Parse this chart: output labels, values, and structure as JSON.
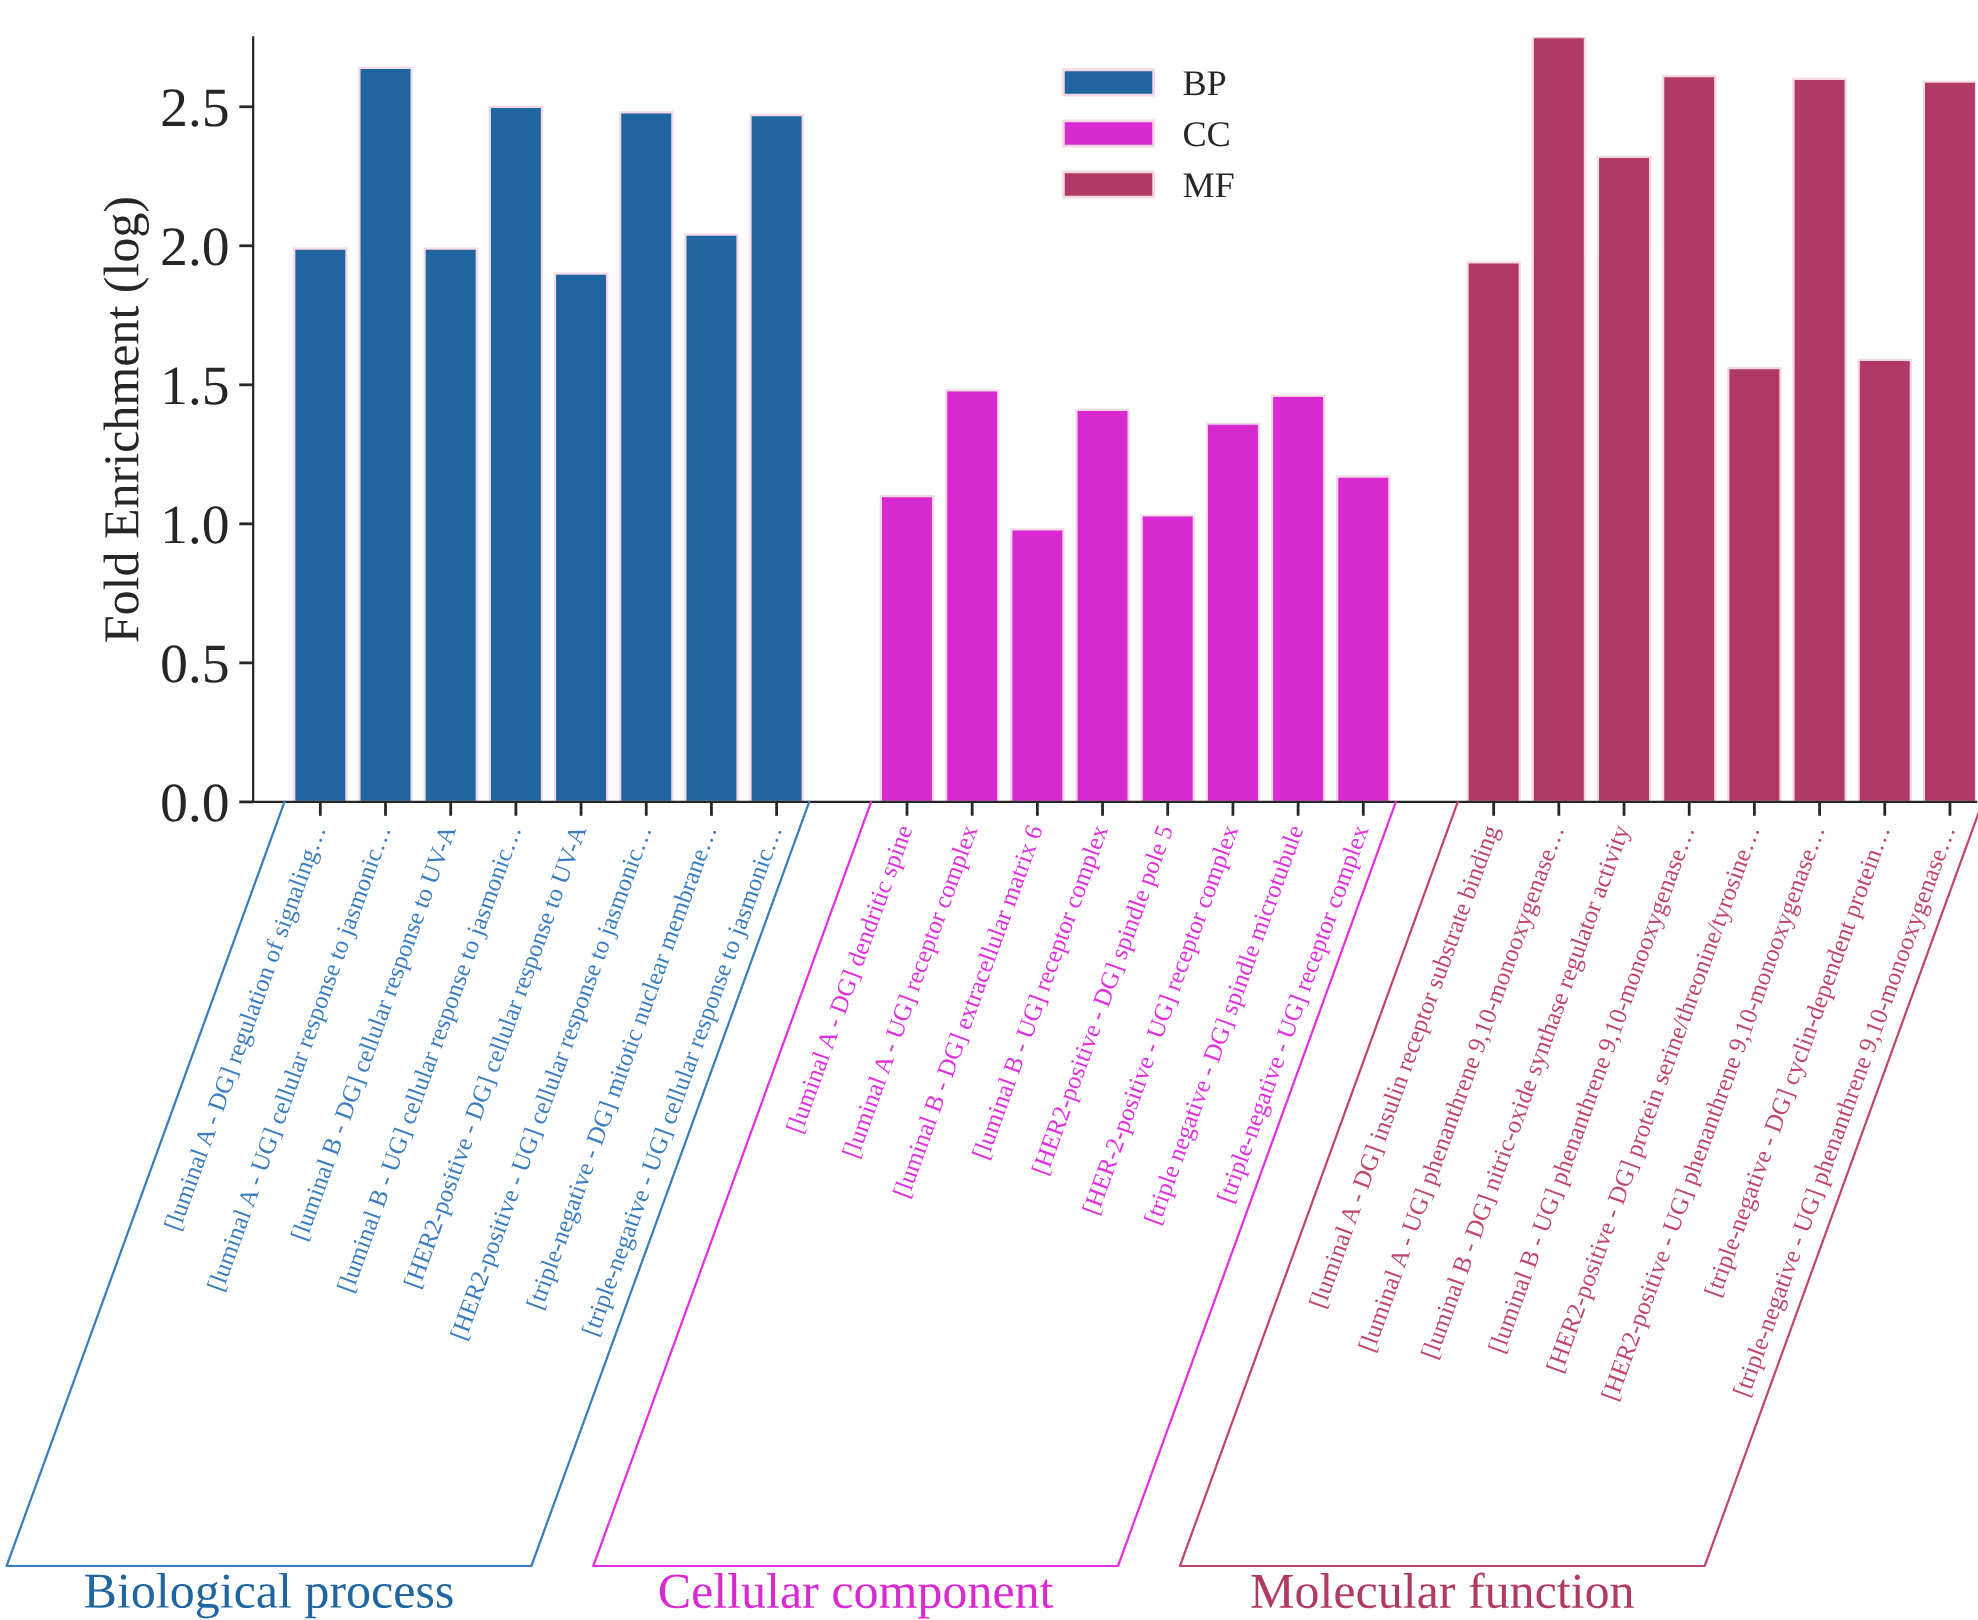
{
  "chart_data": {
    "type": "bar",
    "ylabel": "Fold Enrichment (log)",
    "categories": [
      "[luminal A - DG] regulation of signaling…",
      "[luminal A - UG] cellular response to jasmonic…",
      "[luminal B - DG] cellular response to UV-A",
      "[luminal B - UG] cellular response to jasmonic…",
      "[HER2-positive - DG] cellular response to UV-A",
      "[HER2-positive - UG] cellular response to jasmonic…",
      "[triple-negative - DG] mitotic nuclear membrane…",
      "[triple-negative - UG] cellular response to jasmonic…",
      null,
      "[luminal A - DG] dendritic spine",
      "[luminal A - UG] receptor complex",
      "[luminal B - DG] extracellular matrix 6",
      "[luminal B - UG] receptor complex",
      "[HER2-positive - DG] spindle pole 5",
      "[HER-2-positive - UG] receptor complex",
      "[triple negative - DG] spindle microtubule",
      "[triple-negative - UG] receptor complex",
      null,
      "[luminal A - DG] insulin receptor substrate binding",
      "[luminal A - UG] phenanthrene 9,10-monooxygenase…",
      "[luminal B - DG] nitric-oxide synthase regulator activity",
      "[luminal B - UG] phenanthrene 9,10-monooxygenase…",
      "[HER2-positive - DG] protein serine/threonine/tyrosine…",
      "[HER2-positive - UG] phenanthrene 9,10-monooxygenase…",
      "[triple-negative - DG] cyclin-dependent protein…",
      "[triple-negative - UG] phenanthrene 9,10-monooxygenase…"
    ],
    "series": [
      {
        "name": "BP",
        "color": "#1f65a0",
        "values": [
          1.99,
          2.64,
          1.99,
          2.5,
          1.9,
          2.48,
          2.04,
          2.47,
          null,
          null,
          null,
          null,
          null,
          null,
          null,
          null,
          null,
          null,
          null,
          null,
          null,
          null,
          null,
          null,
          null,
          null
        ]
      },
      {
        "name": "CC",
        "color": "#d929d1",
        "values": [
          null,
          null,
          null,
          null,
          null,
          null,
          null,
          null,
          null,
          1.1,
          1.48,
          0.98,
          1.41,
          1.03,
          1.36,
          1.46,
          1.17,
          null,
          null,
          null,
          null,
          null,
          null,
          null,
          null,
          null
        ]
      },
      {
        "name": "MF",
        "color": "#b03a64",
        "values": [
          null,
          null,
          null,
          null,
          null,
          null,
          null,
          null,
          null,
          null,
          null,
          null,
          null,
          null,
          null,
          null,
          null,
          null,
          1.94,
          2.75,
          2.32,
          2.61,
          1.56,
          2.6,
          1.59,
          2.59
        ]
      }
    ],
    "ylim": [
      0,
      2.75
    ],
    "yticks": [
      {
        "value": 0,
        "label": "0.0"
      },
      0.5,
      {
        "value": 1,
        "label": "1.0"
      },
      1.5,
      {
        "value": 2,
        "label": "2.0"
      },
      2.5
    ],
    "legend": "top",
    "grid": false,
    "annotations": [
      "Biological process",
      "Cellular component",
      "Molecular function"
    ]
  }
}
